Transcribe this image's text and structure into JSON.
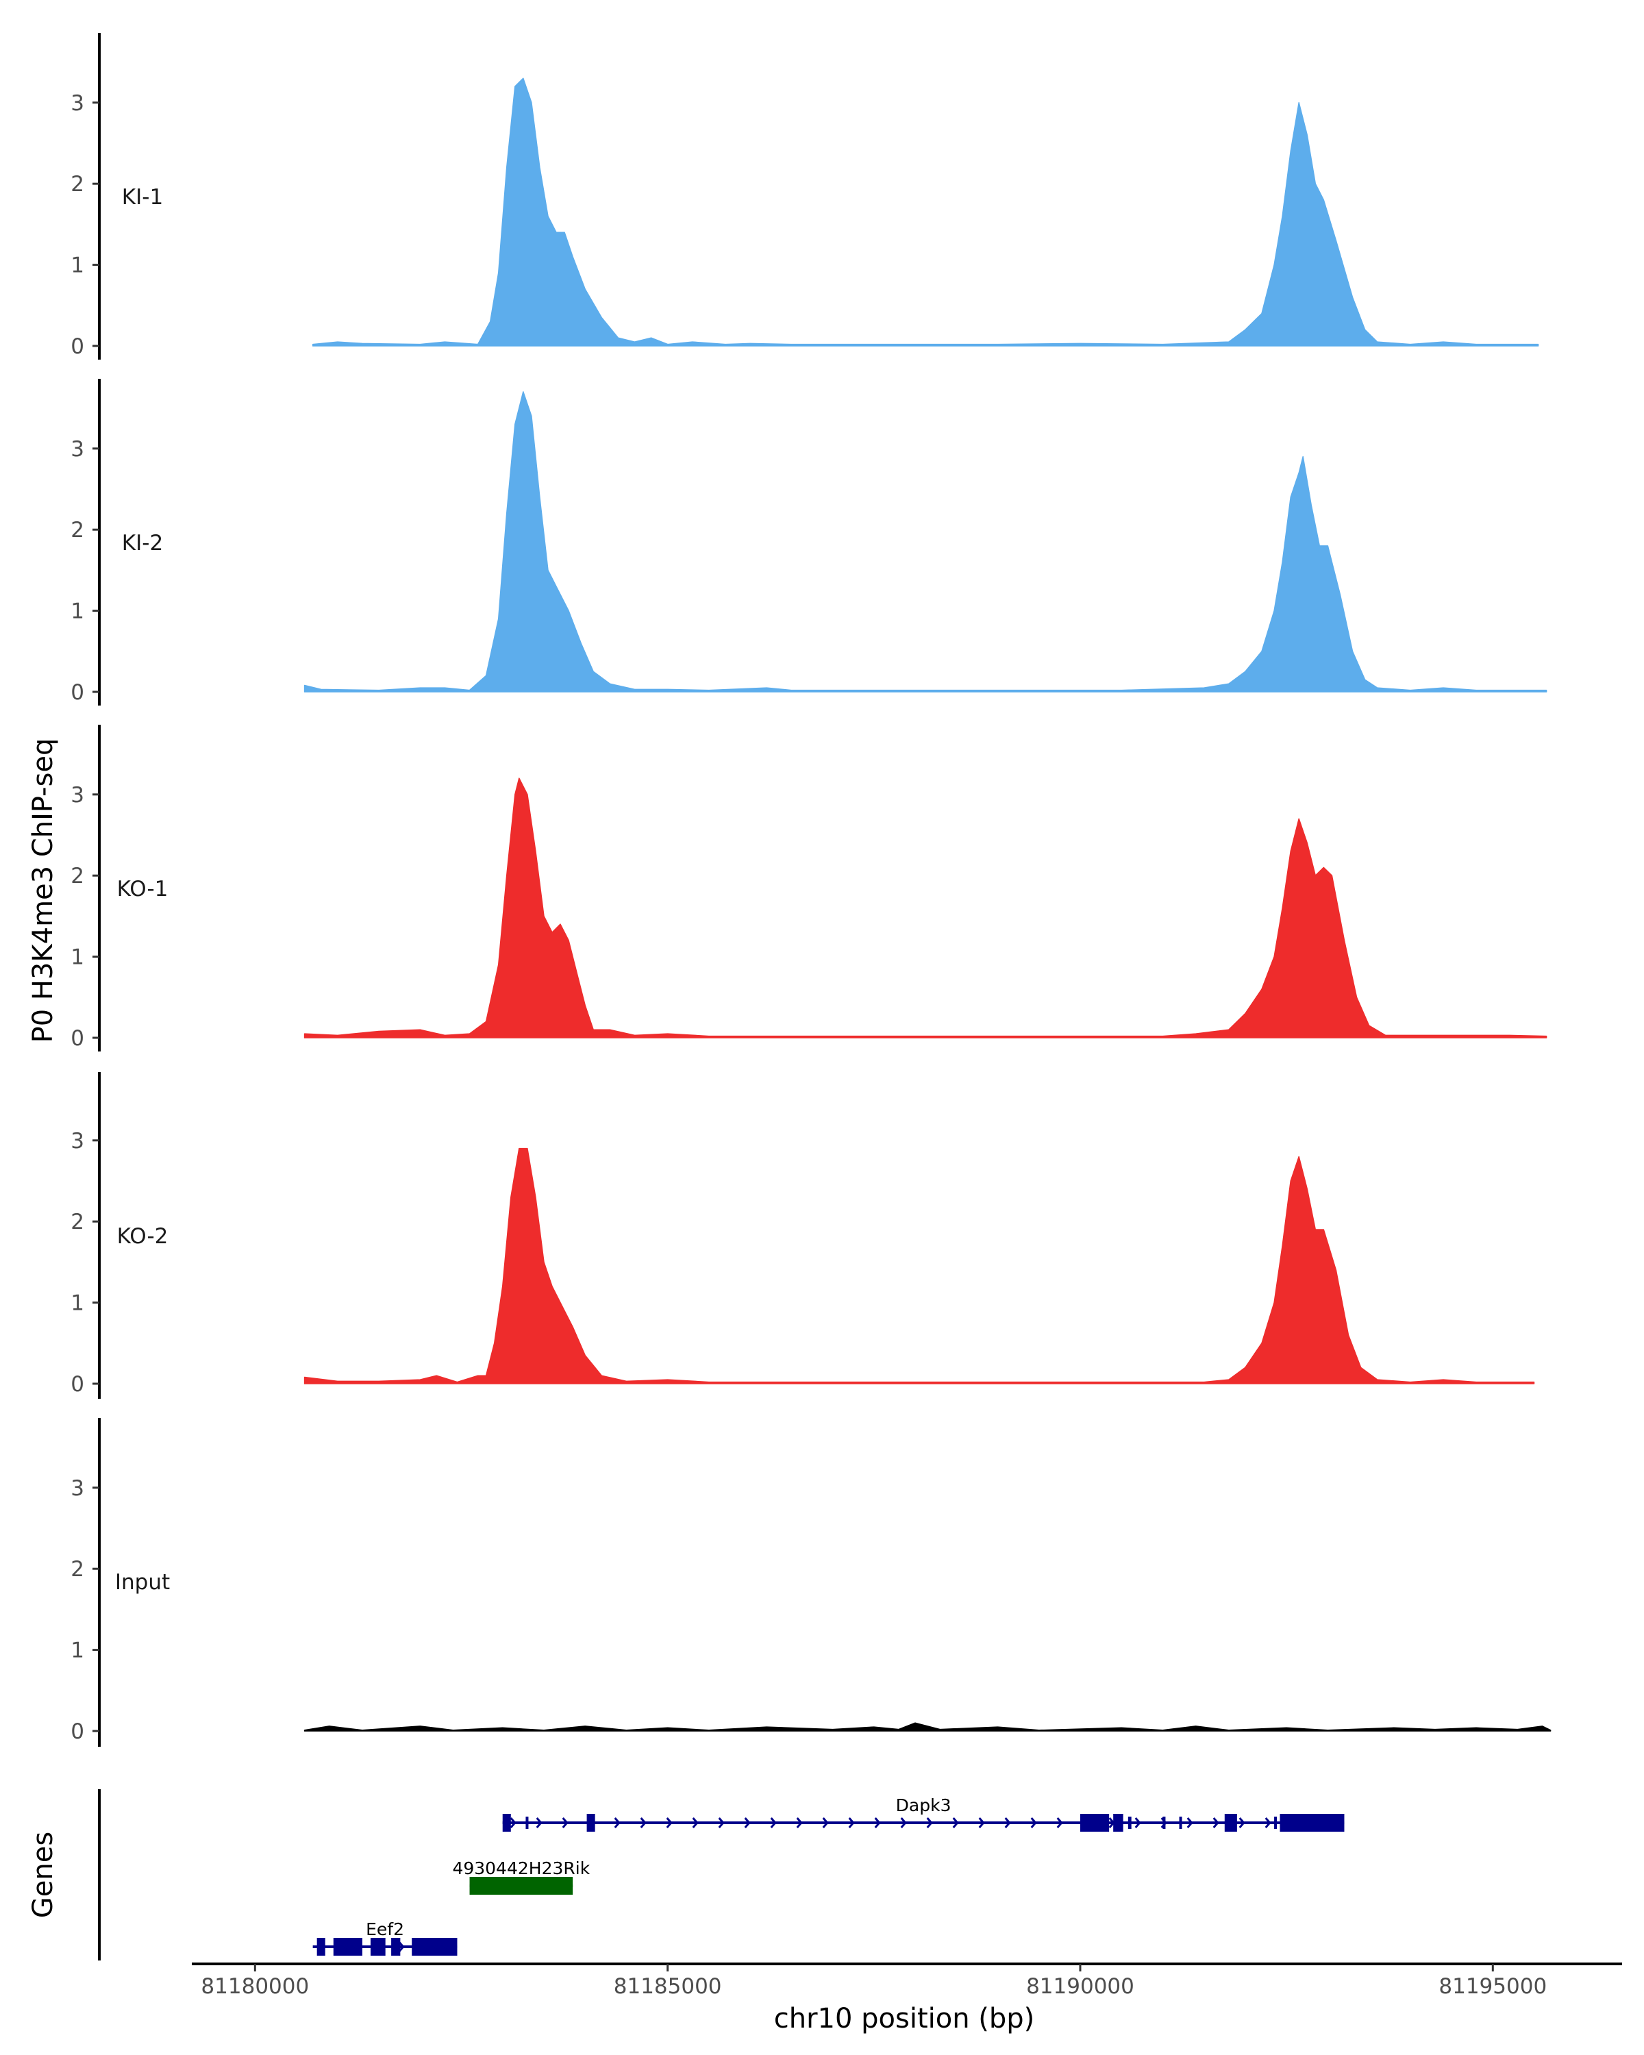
{
  "chart_data": {
    "type": "area",
    "y_axis_title": "P0 H3K4me3 ChIP-seq",
    "x_axis_title": "chr10 position (bp)",
    "genes_axis_title": "Genes",
    "xlim": [
      81179300,
      81196500
    ],
    "x_ticks": [
      81180000,
      81185000,
      81190000,
      81195000
    ],
    "x_tick_labels": [
      "81180000",
      "81185000",
      "81190000",
      "81195000"
    ],
    "ylim": [
      0,
      3.9
    ],
    "y_ticks": [
      0,
      1,
      2,
      3
    ],
    "y_tick_labels": [
      "0",
      "1",
      "2",
      "3"
    ],
    "tracks": [
      {
        "name": "KI-1",
        "color": "#5DADEC",
        "points": [
          [
            81180700,
            0.02
          ],
          [
            81181000,
            0.05
          ],
          [
            81181300,
            0.03
          ],
          [
            81182000,
            0.02
          ],
          [
            81182300,
            0.05
          ],
          [
            81182700,
            0.02
          ],
          [
            81182850,
            0.3
          ],
          [
            81182950,
            0.9
          ],
          [
            81183050,
            2.2
          ],
          [
            81183150,
            3.2
          ],
          [
            81183250,
            3.3
          ],
          [
            81183350,
            3.0
          ],
          [
            81183450,
            2.2
          ],
          [
            81183550,
            1.6
          ],
          [
            81183650,
            1.4
          ],
          [
            81183750,
            1.4
          ],
          [
            81183850,
            1.1
          ],
          [
            81184000,
            0.7
          ],
          [
            81184200,
            0.35
          ],
          [
            81184400,
            0.1
          ],
          [
            81184600,
            0.05
          ],
          [
            81184800,
            0.1
          ],
          [
            81185000,
            0.02
          ],
          [
            81185300,
            0.05
          ],
          [
            81185700,
            0.02
          ],
          [
            81186000,
            0.03
          ],
          [
            81186500,
            0.02
          ],
          [
            81187000,
            0.02
          ],
          [
            81188000,
            0.02
          ],
          [
            81189000,
            0.02
          ],
          [
            81190000,
            0.03
          ],
          [
            81191000,
            0.02
          ],
          [
            81191800,
            0.05
          ],
          [
            81192000,
            0.2
          ],
          [
            81192200,
            0.4
          ],
          [
            81192350,
            1.0
          ],
          [
            81192450,
            1.6
          ],
          [
            81192550,
            2.4
          ],
          [
            81192650,
            3.0
          ],
          [
            81192750,
            2.6
          ],
          [
            81192850,
            2.0
          ],
          [
            81192950,
            1.8
          ],
          [
            81193100,
            1.3
          ],
          [
            81193300,
            0.6
          ],
          [
            81193450,
            0.2
          ],
          [
            81193600,
            0.05
          ],
          [
            81194000,
            0.02
          ],
          [
            81194400,
            0.05
          ],
          [
            81194800,
            0.02
          ],
          [
            81195300,
            0.02
          ],
          [
            81195550,
            0.02
          ]
        ]
      },
      {
        "name": "KI-2",
        "color": "#5DADEC",
        "points": [
          [
            81180600,
            0.08
          ],
          [
            81180800,
            0.03
          ],
          [
            81181500,
            0.02
          ],
          [
            81182000,
            0.05
          ],
          [
            81182300,
            0.05
          ],
          [
            81182600,
            0.02
          ],
          [
            81182800,
            0.2
          ],
          [
            81182950,
            0.9
          ],
          [
            81183050,
            2.2
          ],
          [
            81183150,
            3.3
          ],
          [
            81183250,
            3.7
          ],
          [
            81183350,
            3.4
          ],
          [
            81183450,
            2.4
          ],
          [
            81183550,
            1.5
          ],
          [
            81183650,
            1.3
          ],
          [
            81183800,
            1.0
          ],
          [
            81183950,
            0.6
          ],
          [
            81184100,
            0.25
          ],
          [
            81184300,
            0.1
          ],
          [
            81184600,
            0.03
          ],
          [
            81185000,
            0.03
          ],
          [
            81185500,
            0.02
          ],
          [
            81186200,
            0.05
          ],
          [
            81186500,
            0.02
          ],
          [
            81187500,
            0.02
          ],
          [
            81188500,
            0.02
          ],
          [
            81189500,
            0.02
          ],
          [
            81190500,
            0.02
          ],
          [
            81191500,
            0.05
          ],
          [
            81191800,
            0.1
          ],
          [
            81192000,
            0.25
          ],
          [
            81192200,
            0.5
          ],
          [
            81192350,
            1.0
          ],
          [
            81192450,
            1.6
          ],
          [
            81192550,
            2.4
          ],
          [
            81192650,
            2.7
          ],
          [
            81192700,
            2.9
          ],
          [
            81192800,
            2.3
          ],
          [
            81192900,
            1.8
          ],
          [
            81193000,
            1.8
          ],
          [
            81193150,
            1.2
          ],
          [
            81193300,
            0.5
          ],
          [
            81193450,
            0.15
          ],
          [
            81193600,
            0.05
          ],
          [
            81194000,
            0.02
          ],
          [
            81194400,
            0.05
          ],
          [
            81194800,
            0.02
          ],
          [
            81195300,
            0.02
          ],
          [
            81195650,
            0.02
          ]
        ]
      },
      {
        "name": "KO-1",
        "color": "#EE2C2C",
        "points": [
          [
            81180600,
            0.05
          ],
          [
            81181000,
            0.03
          ],
          [
            81181500,
            0.08
          ],
          [
            81182000,
            0.1
          ],
          [
            81182300,
            0.03
          ],
          [
            81182600,
            0.05
          ],
          [
            81182800,
            0.2
          ],
          [
            81182950,
            0.9
          ],
          [
            81183050,
            2.0
          ],
          [
            81183150,
            3.0
          ],
          [
            81183200,
            3.2
          ],
          [
            81183300,
            3.0
          ],
          [
            81183400,
            2.3
          ],
          [
            81183500,
            1.5
          ],
          [
            81183600,
            1.3
          ],
          [
            81183700,
            1.4
          ],
          [
            81183800,
            1.2
          ],
          [
            81183900,
            0.8
          ],
          [
            81184000,
            0.4
          ],
          [
            81184100,
            0.1
          ],
          [
            81184300,
            0.1
          ],
          [
            81184600,
            0.03
          ],
          [
            81185000,
            0.05
          ],
          [
            81185500,
            0.02
          ],
          [
            81186000,
            0.02
          ],
          [
            81187000,
            0.02
          ],
          [
            81188000,
            0.02
          ],
          [
            81189000,
            0.02
          ],
          [
            81190000,
            0.02
          ],
          [
            81191000,
            0.02
          ],
          [
            81191400,
            0.05
          ],
          [
            81191800,
            0.1
          ],
          [
            81192000,
            0.3
          ],
          [
            81192200,
            0.6
          ],
          [
            81192350,
            1.0
          ],
          [
            81192450,
            1.6
          ],
          [
            81192550,
            2.3
          ],
          [
            81192650,
            2.7
          ],
          [
            81192750,
            2.4
          ],
          [
            81192850,
            2.0
          ],
          [
            81192950,
            2.1
          ],
          [
            81193050,
            2.0
          ],
          [
            81193200,
            1.2
          ],
          [
            81193350,
            0.5
          ],
          [
            81193500,
            0.15
          ],
          [
            81193700,
            0.03
          ],
          [
            81194200,
            0.03
          ],
          [
            81194800,
            0.03
          ],
          [
            81195200,
            0.03
          ],
          [
            81195650,
            0.02
          ]
        ]
      },
      {
        "name": "KO-2",
        "color": "#EE2C2C",
        "points": [
          [
            81180600,
            0.08
          ],
          [
            81181000,
            0.03
          ],
          [
            81181500,
            0.03
          ],
          [
            81182000,
            0.05
          ],
          [
            81182200,
            0.1
          ],
          [
            81182450,
            0.02
          ],
          [
            81182700,
            0.1
          ],
          [
            81182800,
            0.1
          ],
          [
            81182900,
            0.5
          ],
          [
            81183000,
            1.2
          ],
          [
            81183100,
            2.3
          ],
          [
            81183200,
            2.9
          ],
          [
            81183300,
            2.9
          ],
          [
            81183400,
            2.3
          ],
          [
            81183500,
            1.5
          ],
          [
            81183600,
            1.2
          ],
          [
            81183700,
            1.0
          ],
          [
            81183850,
            0.7
          ],
          [
            81184000,
            0.35
          ],
          [
            81184200,
            0.1
          ],
          [
            81184500,
            0.03
          ],
          [
            81185000,
            0.05
          ],
          [
            81185500,
            0.02
          ],
          [
            81186500,
            0.02
          ],
          [
            81187500,
            0.02
          ],
          [
            81188500,
            0.02
          ],
          [
            81189500,
            0.02
          ],
          [
            81190500,
            0.02
          ],
          [
            81191500,
            0.02
          ],
          [
            81191800,
            0.05
          ],
          [
            81192000,
            0.2
          ],
          [
            81192200,
            0.5
          ],
          [
            81192350,
            1.0
          ],
          [
            81192450,
            1.7
          ],
          [
            81192550,
            2.5
          ],
          [
            81192650,
            2.8
          ],
          [
            81192750,
            2.4
          ],
          [
            81192850,
            1.9
          ],
          [
            81192950,
            1.9
          ],
          [
            81193100,
            1.4
          ],
          [
            81193250,
            0.6
          ],
          [
            81193400,
            0.2
          ],
          [
            81193600,
            0.05
          ],
          [
            81194000,
            0.02
          ],
          [
            81194400,
            0.05
          ],
          [
            81194800,
            0.02
          ],
          [
            81195500,
            0.02
          ]
        ]
      },
      {
        "name": "Input",
        "color": "#000000",
        "points": [
          [
            81180600,
            0.01
          ],
          [
            81180900,
            0.06
          ],
          [
            81181300,
            0.01
          ],
          [
            81182000,
            0.06
          ],
          [
            81182400,
            0.01
          ],
          [
            81183000,
            0.04
          ],
          [
            81183500,
            0.01
          ],
          [
            81184000,
            0.06
          ],
          [
            81184500,
            0.01
          ],
          [
            81185000,
            0.04
          ],
          [
            81185500,
            0.01
          ],
          [
            81186200,
            0.05
          ],
          [
            81187000,
            0.02
          ],
          [
            81187500,
            0.05
          ],
          [
            81187800,
            0.02
          ],
          [
            81188000,
            0.1
          ],
          [
            81188300,
            0.02
          ],
          [
            81189000,
            0.05
          ],
          [
            81189500,
            0.01
          ],
          [
            81190500,
            0.04
          ],
          [
            81191000,
            0.01
          ],
          [
            81191400,
            0.06
          ],
          [
            81191800,
            0.01
          ],
          [
            81192500,
            0.04
          ],
          [
            81193000,
            0.01
          ],
          [
            81193800,
            0.04
          ],
          [
            81194300,
            0.02
          ],
          [
            81194800,
            0.04
          ],
          [
            81195300,
            0.02
          ],
          [
            81195600,
            0.06
          ],
          [
            81195700,
            0.01
          ]
        ]
      }
    ],
    "genes": [
      {
        "name": "Dapk3",
        "strand": "+",
        "color": "#00008B",
        "start": 81183000,
        "end": 81193200,
        "row": 0,
        "exons": [
          [
            81183000,
            81183100,
            "thick"
          ],
          [
            81183280,
            81183300,
            "thin"
          ],
          [
            81184020,
            81184120,
            "thick"
          ],
          [
            81190000,
            81190350,
            "thick"
          ],
          [
            81190400,
            81190520,
            "thick"
          ],
          [
            81190580,
            81190620,
            "thin"
          ],
          [
            81191000,
            81191020,
            "thin"
          ],
          [
            81191200,
            81191220,
            "thin"
          ],
          [
            81191750,
            81191900,
            "thick"
          ],
          [
            81192350,
            81192370,
            "thin"
          ],
          [
            81192420,
            81193200,
            "thick"
          ]
        ]
      },
      {
        "name": "4930442H23Rik",
        "strand": "-",
        "color": "#006400",
        "start": 81182600,
        "end": 81183850,
        "row": 1,
        "exons": [
          [
            81182600,
            81183850,
            "thick"
          ]
        ]
      },
      {
        "name": "Eef2",
        "strand": "+",
        "color": "#00008B",
        "start": 81180700,
        "end": 81182450,
        "row": 2,
        "exons": [
          [
            81180750,
            81180850,
            "thick"
          ],
          [
            81180950,
            81181300,
            "thick"
          ],
          [
            81181400,
            81181580,
            "thick"
          ],
          [
            81181650,
            81181760,
            "thick"
          ],
          [
            81181900,
            81182450,
            "thick"
          ]
        ]
      }
    ]
  }
}
